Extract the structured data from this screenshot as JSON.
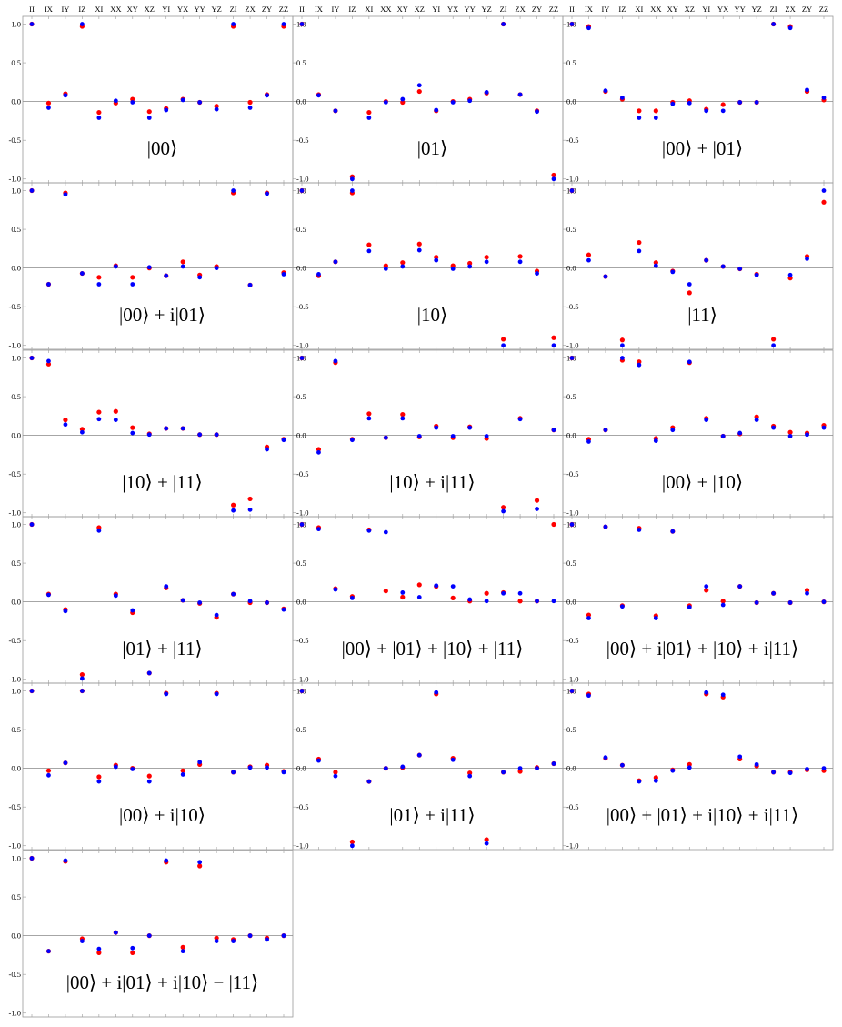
{
  "chart_data": {
    "type": "scatter",
    "categories": [
      "II",
      "IX",
      "IY",
      "IZ",
      "XI",
      "XX",
      "XY",
      "XZ",
      "YI",
      "YX",
      "YY",
      "YZ",
      "ZI",
      "ZX",
      "ZY",
      "ZZ"
    ],
    "yticks": [
      "1.0",
      "0.5",
      "0.0",
      "-0.5",
      "-1.0"
    ],
    "ylim": [
      -1.05,
      1.1
    ],
    "colors": {
      "series_a": "#ff0000",
      "series_b": "#0000ff"
    },
    "grid": false,
    "panels": [
      {
        "label": "|00⟩",
        "red": [
          1.0,
          -0.02,
          0.1,
          0.97,
          -0.14,
          -0.02,
          0.03,
          -0.13,
          -0.09,
          0.03,
          -0.01,
          -0.06,
          0.97,
          -0.01,
          0.09,
          0.97
        ],
        "blue": [
          1.0,
          -0.08,
          0.08,
          1.0,
          -0.21,
          0.01,
          -0.01,
          -0.21,
          -0.11,
          0.02,
          -0.01,
          -0.1,
          1.0,
          -0.08,
          0.08,
          1.0
        ]
      },
      {
        "label": "|01⟩",
        "red": [
          1.0,
          0.09,
          -0.12,
          -0.97,
          -0.14,
          0.0,
          -0.01,
          0.13,
          -0.12,
          0.0,
          0.03,
          0.11,
          1.0,
          0.09,
          -0.12,
          -0.95
        ],
        "blue": [
          1.0,
          0.08,
          -0.12,
          -1.0,
          -0.21,
          -0.01,
          0.03,
          0.21,
          -0.11,
          -0.01,
          0.01,
          0.12,
          1.0,
          0.09,
          -0.13,
          -1.0
        ]
      },
      {
        "label": "|00⟩ + |01⟩",
        "red": [
          1.0,
          0.97,
          0.13,
          0.03,
          -0.12,
          -0.12,
          -0.01,
          0.01,
          -0.1,
          -0.04,
          -0.01,
          -0.01,
          1.0,
          0.97,
          0.13,
          0.02
        ],
        "blue": [
          1.0,
          0.95,
          0.14,
          0.05,
          -0.21,
          -0.21,
          -0.03,
          -0.02,
          -0.12,
          -0.12,
          -0.01,
          -0.01,
          1.0,
          0.95,
          0.15,
          0.05
        ]
      },
      {
        "label": "|00⟩ + i|01⟩",
        "red": [
          1.0,
          -0.21,
          0.97,
          -0.07,
          -0.12,
          0.03,
          -0.12,
          0.0,
          -0.1,
          0.08,
          -0.09,
          0.02,
          0.97,
          -0.22,
          0.97,
          -0.06
        ],
        "blue": [
          1.0,
          -0.21,
          0.95,
          -0.07,
          -0.21,
          0.02,
          -0.21,
          0.01,
          -0.1,
          0.02,
          -0.12,
          0.0,
          1.0,
          -0.22,
          0.96,
          -0.08
        ]
      },
      {
        "label": "|10⟩",
        "red": [
          1.0,
          -0.1,
          0.08,
          0.97,
          0.3,
          0.03,
          0.07,
          0.31,
          0.14,
          0.03,
          0.06,
          0.14,
          -0.92,
          0.15,
          -0.04,
          -0.9
        ],
        "blue": [
          1.0,
          -0.08,
          0.08,
          1.0,
          0.22,
          -0.01,
          0.02,
          0.23,
          0.1,
          -0.01,
          0.02,
          0.08,
          -1.0,
          0.08,
          -0.07,
          -1.0
        ]
      },
      {
        "label": "|11⟩",
        "red": [
          1.0,
          0.17,
          -0.11,
          -0.93,
          0.33,
          0.07,
          -0.04,
          -0.32,
          0.1,
          0.02,
          -0.01,
          -0.08,
          -0.92,
          -0.13,
          0.15,
          0.85
        ],
        "blue": [
          1.0,
          0.1,
          -0.11,
          -1.0,
          0.22,
          0.03,
          -0.05,
          -0.21,
          0.1,
          0.02,
          -0.01,
          -0.09,
          -1.0,
          -0.09,
          0.12,
          1.0
        ]
      },
      {
        "label": "|10⟩ + |11⟩",
        "red": [
          1.0,
          0.92,
          0.2,
          0.08,
          0.3,
          0.31,
          0.1,
          0.02,
          0.09,
          0.09,
          0.01,
          0.01,
          -0.9,
          -0.82,
          -0.15,
          -0.05
        ],
        "blue": [
          1.0,
          0.96,
          0.14,
          0.04,
          0.21,
          0.2,
          0.03,
          0.01,
          0.09,
          0.09,
          0.01,
          0.01,
          -0.97,
          -0.96,
          -0.18,
          -0.06
        ]
      },
      {
        "label": "|10⟩ + i|11⟩",
        "red": [
          1.0,
          -0.18,
          0.94,
          -0.05,
          0.28,
          -0.03,
          0.27,
          -0.02,
          0.12,
          -0.03,
          0.11,
          -0.04,
          -0.93,
          0.22,
          -0.84,
          0.07
        ],
        "blue": [
          1.0,
          -0.22,
          0.96,
          -0.06,
          0.22,
          -0.03,
          0.22,
          -0.01,
          0.1,
          -0.01,
          0.1,
          -0.01,
          -0.98,
          0.21,
          -0.95,
          0.07
        ]
      },
      {
        "label": "|00⟩ + |10⟩",
        "red": [
          1.0,
          -0.05,
          0.07,
          0.97,
          0.95,
          -0.04,
          0.1,
          0.94,
          0.22,
          -0.01,
          0.02,
          0.24,
          0.12,
          0.04,
          0.03,
          0.13
        ],
        "blue": [
          1.0,
          -0.08,
          0.07,
          1.0,
          0.91,
          -0.07,
          0.07,
          0.95,
          0.2,
          -0.01,
          0.03,
          0.2,
          0.1,
          -0.01,
          0.01,
          0.1
        ]
      },
      {
        "label": "|01⟩ + |11⟩",
        "red": [
          1.0,
          0.1,
          -0.1,
          -0.94,
          0.96,
          0.1,
          -0.14,
          -0.92,
          0.18,
          0.02,
          -0.02,
          -0.2,
          0.1,
          -0.01,
          -0.01,
          -0.09
        ],
        "blue": [
          1.0,
          0.09,
          -0.12,
          -0.99,
          0.92,
          0.08,
          -0.11,
          -0.92,
          0.2,
          0.02,
          -0.01,
          -0.17,
          0.1,
          0.01,
          -0.01,
          -0.1
        ]
      },
      {
        "label": "|00⟩ + |01⟩ + |10⟩ + |11⟩",
        "red": [
          1.0,
          0.96,
          0.17,
          0.07,
          0.93,
          0.14,
          0.06,
          0.22,
          0.2,
          0.05,
          0.01,
          0.11,
          0.12,
          0.01,
          0.01,
          1.0
        ],
        "blue": [
          1.0,
          0.94,
          0.16,
          0.05,
          0.92,
          0.9,
          0.12,
          0.06,
          0.21,
          0.2,
          0.03,
          0.01,
          0.11,
          0.11,
          0.01,
          0.01
        ]
      },
      {
        "label": "|00⟩ + i|01⟩ + |10⟩ + i|11⟩",
        "red": [
          1.0,
          -0.17,
          0.97,
          -0.05,
          0.95,
          -0.18,
          0.91,
          -0.05,
          0.15,
          0.01,
          0.2,
          -0.01,
          0.11,
          -0.01,
          0.15,
          0.0
        ],
        "blue": [
          1.0,
          -0.21,
          0.97,
          -0.06,
          0.93,
          -0.21,
          0.91,
          -0.07,
          0.2,
          -0.04,
          0.2,
          -0.01,
          0.11,
          -0.01,
          0.11,
          0.0
        ]
      },
      {
        "label": "|00⟩ + i|10⟩",
        "red": [
          1.0,
          -0.03,
          0.07,
          1.0,
          -0.11,
          0.04,
          0.0,
          -0.1,
          0.97,
          -0.03,
          0.05,
          0.97,
          -0.05,
          0.02,
          0.04,
          -0.04
        ],
        "blue": [
          1.0,
          -0.09,
          0.07,
          1.0,
          -0.17,
          0.02,
          -0.01,
          -0.17,
          0.96,
          -0.08,
          0.08,
          0.96,
          -0.05,
          0.01,
          0.01,
          -0.05
        ]
      },
      {
        "label": "|01⟩ + i|11⟩",
        "red": [
          1.0,
          0.12,
          -0.05,
          -0.95,
          -0.17,
          0.0,
          0.01,
          0.17,
          0.96,
          0.13,
          -0.06,
          -0.92,
          -0.05,
          -0.04,
          0.01,
          0.06
        ],
        "blue": [
          1.0,
          0.1,
          -0.1,
          -1.0,
          -0.17,
          0.0,
          0.02,
          0.17,
          0.98,
          0.11,
          -0.1,
          -0.97,
          -0.05,
          0.0,
          0.0,
          0.06
        ]
      },
      {
        "label": "|00⟩ + |01⟩ + i|10⟩ + i|11⟩",
        "red": [
          1.0,
          0.96,
          0.13,
          0.04,
          -0.16,
          -0.12,
          -0.02,
          0.05,
          0.96,
          0.92,
          0.12,
          0.03,
          -0.05,
          -0.05,
          -0.02,
          -0.03
        ],
        "blue": [
          1.0,
          0.94,
          0.14,
          0.04,
          -0.17,
          -0.16,
          -0.03,
          0.01,
          0.98,
          0.95,
          0.15,
          0.05,
          -0.05,
          -0.06,
          -0.01,
          0.0
        ]
      },
      {
        "label": "|00⟩ + i|01⟩ + i|10⟩ − |11⟩",
        "red": [
          1.0,
          -0.2,
          0.96,
          -0.04,
          -0.22,
          0.04,
          -0.22,
          0.0,
          0.95,
          -0.15,
          0.9,
          -0.03,
          -0.05,
          0.0,
          -0.03,
          0.0
        ],
        "blue": [
          1.0,
          -0.2,
          0.97,
          -0.07,
          -0.17,
          0.04,
          -0.16,
          0.0,
          0.97,
          -0.2,
          0.95,
          -0.07,
          -0.07,
          0.0,
          -0.05,
          0.0
        ]
      }
    ]
  }
}
